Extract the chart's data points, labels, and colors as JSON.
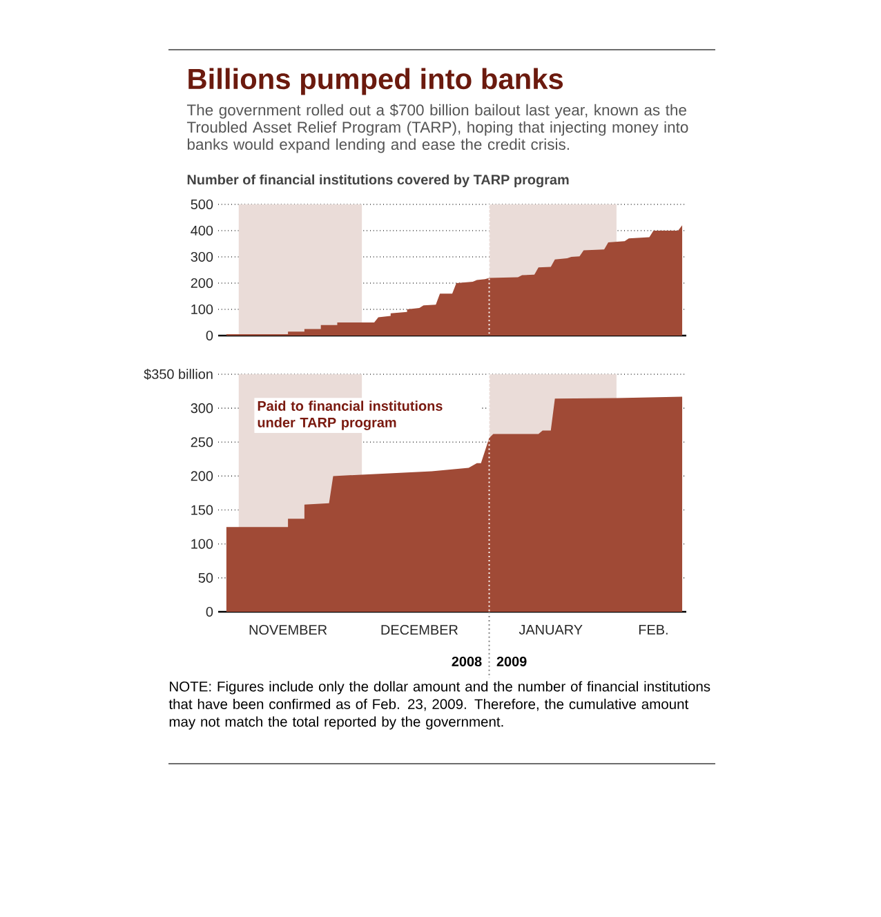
{
  "chart_data": [
    {
      "type": "area",
      "title": "Billions pumped into banks",
      "subtitle": "The government rolled out a $700 billion bailout last year, known as the Troubled Asset Relief Program (TARP), hoping that injecting money into banks would expand lending and ease the credit crisis.",
      "ylabel": "Number of financial institutions covered by TARP program",
      "x": [
        "2008-10-29",
        "2008-11-13",
        "2008-11-13",
        "2008-11-17",
        "2008-11-17",
        "2008-11-21",
        "2008-11-21",
        "2008-11-25",
        "2008-11-25",
        "2008-12-04",
        "2008-12-05",
        "2008-12-08",
        "2008-12-08",
        "2008-12-12",
        "2008-12-12",
        "2008-12-15",
        "2008-12-16",
        "2008-12-19",
        "2008-12-20",
        "2008-12-23",
        "2008-12-24",
        "2008-12-28",
        "2008-12-29",
        "2008-12-31",
        "2009-01-01",
        "2009-01-08",
        "2009-01-09",
        "2009-01-12",
        "2009-01-13",
        "2009-01-16",
        "2009-01-17",
        "2009-01-20",
        "2009-01-21",
        "2009-01-23",
        "2009-01-24",
        "2009-01-29",
        "2009-01-30",
        "2009-02-03",
        "2009-02-04",
        "2009-02-09",
        "2009-02-10",
        "2009-02-16",
        "2009-02-17"
      ],
      "values": [
        5,
        5,
        15,
        15,
        25,
        25,
        40,
        40,
        50,
        50,
        70,
        75,
        85,
        90,
        100,
        105,
        115,
        118,
        160,
        160,
        200,
        205,
        212,
        215,
        220,
        222,
        230,
        232,
        260,
        262,
        290,
        295,
        300,
        302,
        325,
        328,
        355,
        360,
        370,
        375,
        400,
        400,
        420
      ],
      "color": "#a04a36",
      "xlim": [
        "2008-10-27",
        "2009-02-18"
      ],
      "ylim": [
        0,
        500
      ],
      "yticks": [
        0,
        100,
        200,
        300,
        400,
        500
      ],
      "grid": "y",
      "tick_labels": "y",
      "bands": [
        {
          "axis": "x",
          "from": "2008-11-01",
          "to": "2008-12-01",
          "color": "#eadcd8"
        },
        {
          "axis": "x",
          "from": "2009-01-01",
          "to": "2009-02-01",
          "color": "#eadcd8"
        }
      ],
      "ref_lines": [
        {
          "axis": "x",
          "value": "2009-01-01",
          "color": "#ffffff",
          "line_style": "dotted"
        }
      ]
    },
    {
      "type": "area",
      "ylabel": "Paid to financial institutions under TARP program",
      "x": [
        "2008-10-29",
        "2008-11-13",
        "2008-11-13",
        "2008-11-17",
        "2008-11-17",
        "2008-11-23",
        "2008-11-24",
        "2008-12-18",
        "2008-12-27",
        "2008-12-29",
        "2008-12-30",
        "2009-01-01",
        "2009-01-02",
        "2009-01-13",
        "2009-01-14",
        "2009-01-16",
        "2009-01-17",
        "2009-02-01",
        "2009-02-17"
      ],
      "values": [
        125,
        125,
        137,
        137,
        158,
        160,
        200,
        207,
        212,
        219,
        219,
        256,
        262,
        262,
        267,
        267,
        314,
        315,
        317
      ],
      "color": "#a04a36",
      "xlim": [
        "2008-10-27",
        "2009-02-18"
      ],
      "ylim": [
        0,
        350
      ],
      "yticks": [
        0,
        50,
        100,
        150,
        200,
        250,
        300,
        {
          "value": 350,
          "label": "$350 billion"
        }
      ],
      "xticks": [
        {
          "value": "2008-11-13",
          "label": "NOVEMBER"
        },
        {
          "value": "2008-12-15",
          "label": "DECEMBER"
        },
        {
          "value": "2009-01-16",
          "label": "JANUARY"
        },
        {
          "value": "2009-02-10",
          "label": "FEB."
        }
      ],
      "grid": "y",
      "bands": [
        {
          "axis": "x",
          "from": "2008-11-01",
          "to": "2008-12-01",
          "color": "#eadcd8"
        },
        {
          "axis": "x",
          "from": "2009-01-01",
          "to": "2009-02-01",
          "color": "#eadcd8"
        }
      ],
      "ref_lines": [
        {
          "axis": "x",
          "value": "2009-01-01",
          "color": "#ffffff",
          "line_style": "dotted"
        }
      ],
      "annotations": [
        "2008",
        "2009",
        "NOTE: Figures include only the dollar amount and the number of financial institutions that have been confirmed as of Feb. 23, 2009. Therefore, the cumulative amount may not match the total reported by the government."
      ]
    }
  ]
}
